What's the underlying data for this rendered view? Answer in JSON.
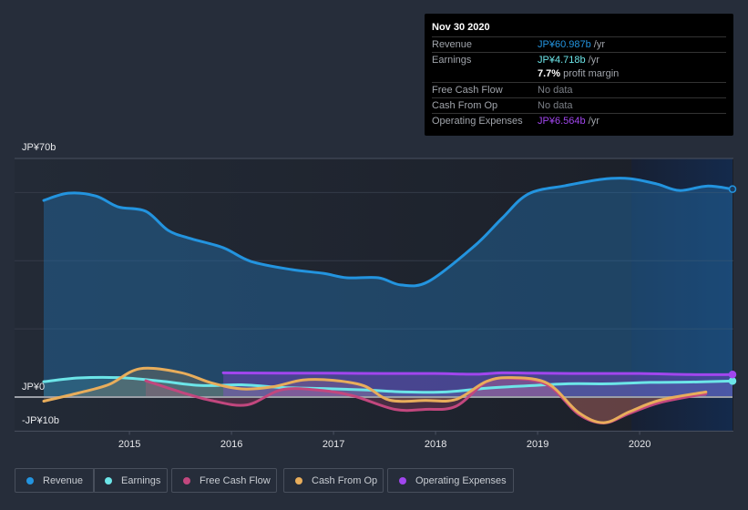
{
  "tooltip": {
    "date": "Nov 30 2020",
    "rows": [
      {
        "label": "Revenue",
        "value": "JP¥60.987b",
        "unit": " /yr",
        "color": "#2394df"
      },
      {
        "label": "Earnings",
        "value": "JP¥4.718b",
        "unit": " /yr",
        "color": "#6ce5e8"
      },
      {
        "label": "",
        "value": "7.7%",
        "unit": " profit margin",
        "color": "#ffffff"
      },
      {
        "label": "Free Cash Flow",
        "value": "No data",
        "unit": "",
        "color": "#7b7f86"
      },
      {
        "label": "Cash From Op",
        "value": "No data",
        "unit": "",
        "color": "#7b7f86"
      },
      {
        "label": "Operating Expenses",
        "value": "JP¥6.564b",
        "unit": " /yr",
        "color": "#a146ee"
      }
    ]
  },
  "legend": [
    {
      "label": "Revenue",
      "color": "#2394df"
    },
    {
      "label": "Earnings",
      "color": "#6ce5e8"
    },
    {
      "label": "Free Cash Flow",
      "color": "#c2477e"
    },
    {
      "label": "Cash From Op",
      "color": "#e8ad5b"
    },
    {
      "label": "Operating Expenses",
      "color": "#a146ee"
    }
  ],
  "chart_data": {
    "type": "area",
    "title": "",
    "xlabel": "",
    "ylabel": "",
    "ylim": [
      -10,
      70
    ],
    "xlim": [
      2014.16,
      2020.91
    ],
    "ytick_labels": [
      {
        "v": 70,
        "label": "JP¥70b"
      },
      {
        "v": 0,
        "label": "JP¥0"
      },
      {
        "v": -10,
        "label": "-JP¥10b"
      }
    ],
    "gridlines": [
      60,
      40,
      20
    ],
    "xticks": [
      2015,
      2016,
      2017,
      2018,
      2019,
      2020
    ],
    "highlight_from": 2019.92,
    "series": [
      {
        "name": "Revenue",
        "color": "#2394df",
        "x": [
          2014.16,
          2014.4,
          2014.67,
          2014.89,
          2015.16,
          2015.38,
          2015.6,
          2015.92,
          2016.19,
          2016.59,
          2016.9,
          2017.13,
          2017.44,
          2017.66,
          2017.93,
          2018.38,
          2018.65,
          2018.91,
          2019.27,
          2019.63,
          2019.9,
          2020.17,
          2020.39,
          2020.66,
          2020.91
        ],
        "values": [
          57.7,
          59.8,
          59.0,
          55.8,
          54.5,
          48.9,
          46.5,
          43.8,
          39.8,
          37.4,
          36.3,
          35.0,
          35.0,
          32.9,
          33.9,
          44.3,
          52.4,
          59.6,
          62.0,
          63.9,
          64.1,
          62.5,
          60.6,
          61.9,
          61.0
        ]
      },
      {
        "name": "Earnings",
        "color": "#6ce5e8",
        "x": [
          2014.16,
          2014.5,
          2014.9,
          2015.3,
          2015.7,
          2016.1,
          2016.5,
          2016.9,
          2017.3,
          2017.7,
          2018.1,
          2018.5,
          2018.9,
          2019.3,
          2019.7,
          2020.1,
          2020.5,
          2020.91
        ],
        "values": [
          4.5,
          5.6,
          5.7,
          4.7,
          3.4,
          3.6,
          2.8,
          2.5,
          2.1,
          1.5,
          1.5,
          2.6,
          3.3,
          3.9,
          3.9,
          4.3,
          4.4,
          4.7
        ]
      },
      {
        "name": "Free Cash Flow",
        "color": "#c2477e",
        "x": [
          2015.16,
          2015.5,
          2015.8,
          2016.15,
          2016.5,
          2016.9,
          2017.2,
          2017.6,
          2017.9,
          2018.2,
          2018.5,
          2018.75,
          2019.1,
          2019.4,
          2019.65,
          2019.9,
          2020.2,
          2020.65
        ],
        "values": [
          4.8,
          1.5,
          -1.0,
          -2.3,
          2.2,
          1.9,
          0.3,
          -3.6,
          -3.6,
          -2.7,
          4.5,
          5.5,
          3.5,
          -5.0,
          -7.6,
          -4.8,
          -1.6,
          1.0
        ]
      },
      {
        "name": "Cash From Op",
        "color": "#e8ad5b",
        "x": [
          2014.16,
          2014.5,
          2014.8,
          2015.1,
          2015.5,
          2015.8,
          2016.1,
          2016.4,
          2016.7,
          2017.0,
          2017.3,
          2017.55,
          2017.9,
          2018.2,
          2018.5,
          2018.75,
          2019.1,
          2019.4,
          2019.65,
          2019.9,
          2020.2,
          2020.65
        ],
        "values": [
          -1.2,
          1.2,
          3.7,
          8.3,
          7.2,
          4.2,
          2.4,
          3.0,
          5.0,
          4.9,
          3.3,
          -0.9,
          -1.0,
          -0.7,
          4.6,
          5.7,
          4.0,
          -4.5,
          -7.5,
          -4.3,
          -0.9,
          1.5
        ]
      },
      {
        "name": "Operating Expenses",
        "color": "#a146ee",
        "x": [
          2015.92,
          2016.5,
          2017.0,
          2017.5,
          2018.0,
          2018.4,
          2018.65,
          2019.0,
          2019.5,
          2020.0,
          2020.5,
          2020.91
        ],
        "values": [
          7.1,
          7.0,
          7.0,
          6.9,
          6.9,
          6.7,
          7.1,
          7.0,
          6.9,
          6.9,
          6.6,
          6.6
        ]
      }
    ]
  }
}
